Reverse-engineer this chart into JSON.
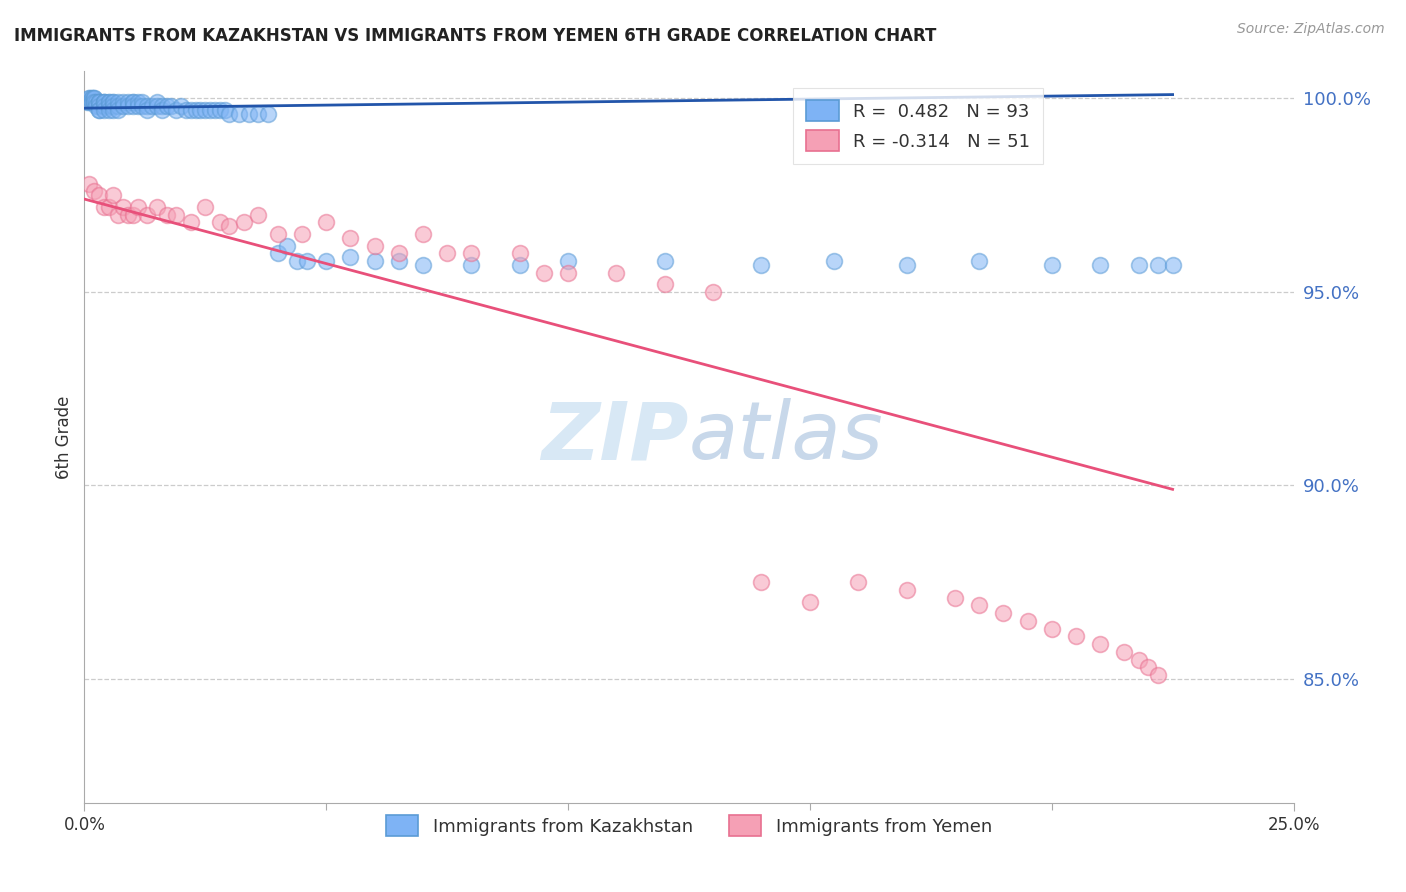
{
  "title": "IMMIGRANTS FROM KAZAKHSTAN VS IMMIGRANTS FROM YEMEN 6TH GRADE CORRELATION CHART",
  "source": "Source: ZipAtlas.com",
  "ylabel": "6th Grade",
  "ytick_labels": [
    "100.0%",
    "95.0%",
    "90.0%",
    "85.0%"
  ],
  "ytick_values": [
    1.0,
    0.95,
    0.9,
    0.85
  ],
  "kaz_color": "#7EB3F5",
  "yem_color": "#F5A0B5",
  "kaz_edge_color": "#5B9BD5",
  "yem_edge_color": "#E87090",
  "kaz_line_color": "#2255AA",
  "yem_line_color": "#E8507A",
  "watermark_color": "#D8E8F5",
  "xlim": [
    0.0,
    0.25
  ],
  "ylim": [
    0.818,
    1.007
  ],
  "kaz_x": [
    0.0005,
    0.001,
    0.001,
    0.001,
    0.0015,
    0.0015,
    0.0015,
    0.002,
    0.002,
    0.002,
    0.002,
    0.0025,
    0.0025,
    0.003,
    0.003,
    0.003,
    0.003,
    0.003,
    0.003,
    0.004,
    0.004,
    0.004,
    0.004,
    0.004,
    0.005,
    0.005,
    0.005,
    0.005,
    0.006,
    0.006,
    0.006,
    0.006,
    0.007,
    0.007,
    0.007,
    0.008,
    0.008,
    0.009,
    0.009,
    0.01,
    0.01,
    0.01,
    0.011,
    0.011,
    0.012,
    0.012,
    0.013,
    0.013,
    0.014,
    0.015,
    0.015,
    0.016,
    0.016,
    0.017,
    0.018,
    0.019,
    0.02,
    0.021,
    0.022,
    0.023,
    0.024,
    0.025,
    0.026,
    0.027,
    0.028,
    0.029,
    0.03,
    0.032,
    0.034,
    0.036,
    0.038,
    0.04,
    0.042,
    0.044,
    0.046,
    0.05,
    0.055,
    0.06,
    0.065,
    0.07,
    0.08,
    0.09,
    0.1,
    0.12,
    0.14,
    0.155,
    0.17,
    0.185,
    0.2,
    0.21,
    0.218,
    0.222,
    0.225
  ],
  "kaz_y": [
    0.999,
    1.0,
    0.999,
    1.0,
    1.0,
    1.0,
    0.999,
    0.999,
    1.0,
    1.0,
    0.999,
    0.999,
    0.998,
    0.999,
    0.999,
    0.999,
    0.998,
    0.997,
    0.997,
    0.999,
    0.999,
    0.999,
    0.998,
    0.997,
    0.999,
    0.999,
    0.998,
    0.997,
    0.999,
    0.999,
    0.998,
    0.997,
    0.999,
    0.998,
    0.997,
    0.999,
    0.998,
    0.999,
    0.998,
    0.999,
    0.999,
    0.998,
    0.999,
    0.998,
    0.999,
    0.998,
    0.998,
    0.997,
    0.998,
    0.999,
    0.998,
    0.998,
    0.997,
    0.998,
    0.998,
    0.997,
    0.998,
    0.997,
    0.997,
    0.997,
    0.997,
    0.997,
    0.997,
    0.997,
    0.997,
    0.997,
    0.996,
    0.996,
    0.996,
    0.996,
    0.996,
    0.96,
    0.962,
    0.958,
    0.958,
    0.958,
    0.959,
    0.958,
    0.958,
    0.957,
    0.957,
    0.957,
    0.958,
    0.958,
    0.957,
    0.958,
    0.957,
    0.958,
    0.957,
    0.957,
    0.957,
    0.957,
    0.957
  ],
  "yem_x": [
    0.001,
    0.002,
    0.003,
    0.004,
    0.005,
    0.006,
    0.007,
    0.008,
    0.009,
    0.01,
    0.011,
    0.013,
    0.015,
    0.017,
    0.019,
    0.022,
    0.025,
    0.028,
    0.03,
    0.033,
    0.036,
    0.04,
    0.045,
    0.05,
    0.055,
    0.06,
    0.065,
    0.07,
    0.075,
    0.08,
    0.09,
    0.095,
    0.1,
    0.11,
    0.12,
    0.13,
    0.14,
    0.15,
    0.16,
    0.17,
    0.18,
    0.185,
    0.19,
    0.195,
    0.2,
    0.205,
    0.21,
    0.215,
    0.218,
    0.22,
    0.222
  ],
  "yem_y": [
    0.978,
    0.976,
    0.975,
    0.972,
    0.972,
    0.975,
    0.97,
    0.972,
    0.97,
    0.97,
    0.972,
    0.97,
    0.972,
    0.97,
    0.97,
    0.968,
    0.972,
    0.968,
    0.967,
    0.968,
    0.97,
    0.965,
    0.965,
    0.968,
    0.964,
    0.962,
    0.96,
    0.965,
    0.96,
    0.96,
    0.96,
    0.955,
    0.955,
    0.955,
    0.952,
    0.95,
    0.875,
    0.87,
    0.875,
    0.873,
    0.871,
    0.869,
    0.867,
    0.865,
    0.863,
    0.861,
    0.859,
    0.857,
    0.855,
    0.853,
    0.851
  ],
  "kaz_line_x0": 0.0,
  "kaz_line_x1": 0.225,
  "kaz_line_y0": 0.9975,
  "kaz_line_y1": 1.001,
  "yem_line_x0": 0.0,
  "yem_line_x1": 0.225,
  "yem_line_y0": 0.974,
  "yem_line_y1": 0.899
}
